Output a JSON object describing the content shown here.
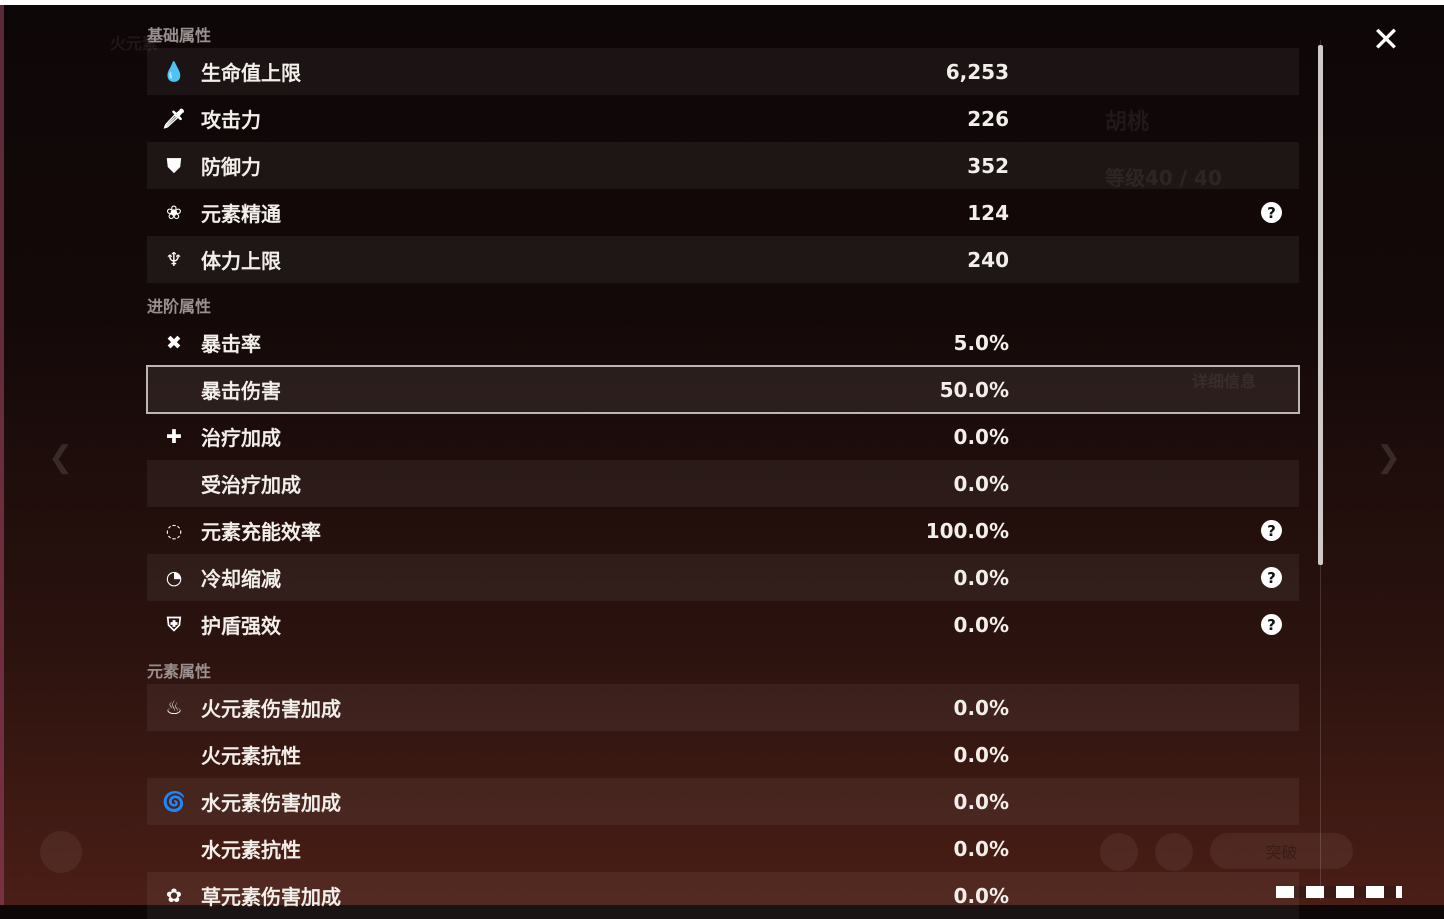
{
  "sections": [
    {
      "title": "基础属性",
      "rows": [
        {
          "icon": "hp-drop-icon",
          "glyph": "💧",
          "label": "生命值上限",
          "value": "6,253",
          "help": false,
          "shade": "light"
        },
        {
          "icon": "sword-icon",
          "glyph": "🗡",
          "label": "攻击力",
          "value": "226",
          "help": false,
          "shade": "dark"
        },
        {
          "icon": "shield-icon",
          "glyph": "⛊",
          "label": "防御力",
          "value": "352",
          "help": false,
          "shade": "light"
        },
        {
          "icon": "elemental-mastery-icon",
          "glyph": "❀",
          "label": "元素精通",
          "value": "124",
          "help": true,
          "shade": "dark"
        },
        {
          "icon": "stamina-icon",
          "glyph": "♆",
          "label": "体力上限",
          "value": "240",
          "help": false,
          "shade": "light"
        }
      ]
    },
    {
      "title": "进阶属性",
      "rows": [
        {
          "icon": "crit-rate-icon",
          "glyph": "✖",
          "label": "暴击率",
          "value": "5.0%",
          "help": false,
          "shade": "dark"
        },
        {
          "icon": "",
          "glyph": "",
          "label": "暴击伤害",
          "value": "50.0%",
          "help": false,
          "shade": "sel"
        },
        {
          "icon": "healing-cross-icon",
          "glyph": "✚",
          "label": "治疗加成",
          "value": "0.0%",
          "help": false,
          "shade": "dark"
        },
        {
          "icon": "",
          "glyph": "",
          "label": "受治疗加成",
          "value": "0.0%",
          "help": false,
          "shade": "light"
        },
        {
          "icon": "energy-recharge-icon",
          "glyph": "◌",
          "label": "元素充能效率",
          "value": "100.0%",
          "help": true,
          "shade": "dark"
        },
        {
          "icon": "cooldown-icon",
          "glyph": "◔",
          "label": "冷却缩减",
          "value": "0.0%",
          "help": true,
          "shade": "light"
        },
        {
          "icon": "shield-strength-icon",
          "glyph": "⛨",
          "label": "护盾强效",
          "value": "0.0%",
          "help": true,
          "shade": "dark"
        }
      ]
    },
    {
      "title": "元素属性",
      "rows": [
        {
          "icon": "pyro-icon",
          "glyph": "♨",
          "label": "火元素伤害加成",
          "value": "0.0%",
          "help": false,
          "shade": "light"
        },
        {
          "icon": "",
          "glyph": "",
          "label": "火元素抗性",
          "value": "0.0%",
          "help": false,
          "shade": "dark"
        },
        {
          "icon": "hydro-icon",
          "glyph": "🌀",
          "label": "水元素伤害加成",
          "value": "0.0%",
          "help": false,
          "shade": "light"
        },
        {
          "icon": "",
          "glyph": "",
          "label": "水元素抗性",
          "value": "0.0%",
          "help": false,
          "shade": "dark"
        },
        {
          "icon": "dendro-icon",
          "glyph": "✿",
          "label": "草元素伤害加成",
          "value": "0.0%",
          "help": false,
          "shade": "light"
        }
      ]
    }
  ],
  "help_glyph": "?",
  "close_glyph": "✕",
  "background": {
    "character_name": "胡桃",
    "level": "等级40 / 40",
    "detail_button": "详细信息",
    "breakthrough_button": "突破",
    "element_label": "火元素"
  }
}
